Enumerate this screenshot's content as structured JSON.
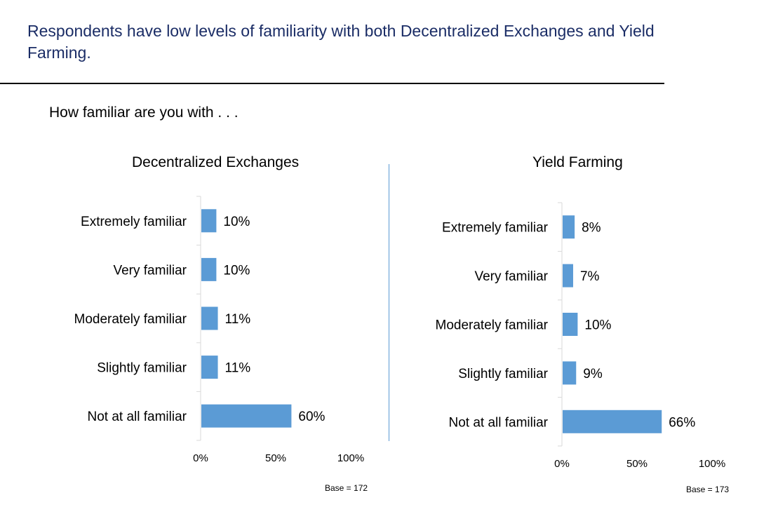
{
  "headline": "Respondents have low levels of familiarity with both Decentralized Exchanges and Yield Farming.",
  "question": "How familiar are you with . . .",
  "colors": {
    "bar": "#5b9bd5",
    "headline": "#1b2d66",
    "divider": "#5b9bd5"
  },
  "chart_data": [
    {
      "type": "bar",
      "orientation": "horizontal",
      "title": "Decentralized Exchanges",
      "categories": [
        "Extremely familiar",
        "Very familiar",
        "Moderately familiar",
        "Slightly familiar",
        "Not at all familiar"
      ],
      "values": [
        10,
        10,
        11,
        11,
        60
      ],
      "value_labels": [
        "10%",
        "10%",
        "11%",
        "11%",
        "60%"
      ],
      "xlim": [
        0,
        100
      ],
      "x_ticks": [
        "0%",
        "50%",
        "100%"
      ],
      "base": "Base = 172"
    },
    {
      "type": "bar",
      "orientation": "horizontal",
      "title": "Yield Farming",
      "categories": [
        "Extremely familiar",
        "Very familiar",
        "Moderately familiar",
        "Slightly familiar",
        "Not at all familiar"
      ],
      "values": [
        8,
        7,
        10,
        9,
        66
      ],
      "value_labels": [
        "8%",
        "7%",
        "10%",
        "9%",
        "66%"
      ],
      "xlim": [
        0,
        100
      ],
      "x_ticks": [
        "0%",
        "50%",
        "100%"
      ],
      "base": "Base = 173"
    }
  ]
}
